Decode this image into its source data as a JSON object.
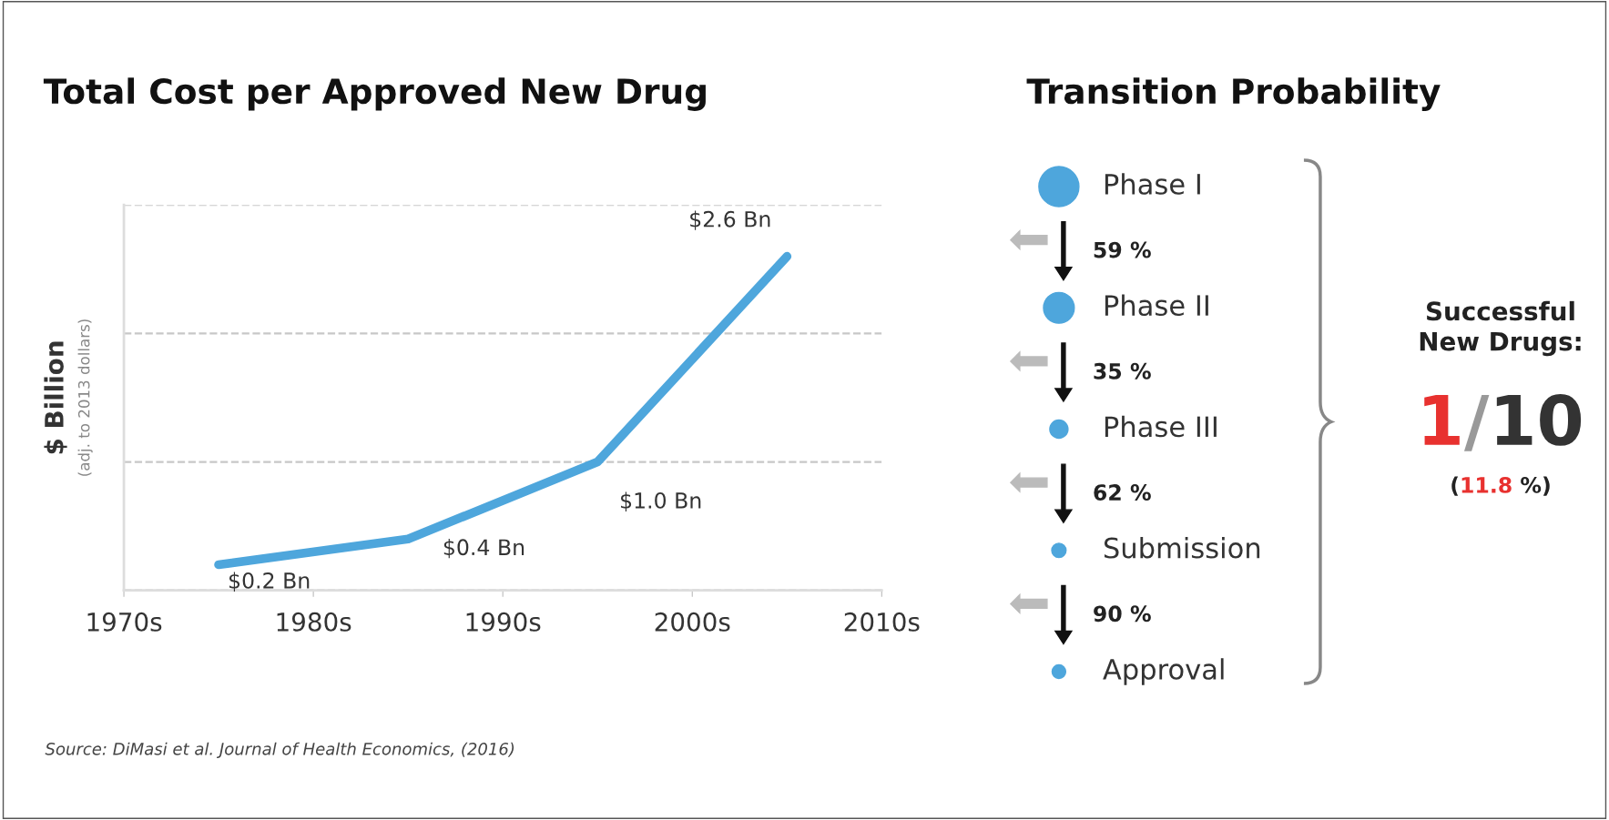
{
  "chart_data": [
    {
      "type": "line",
      "title": "Total Cost per Approved New Drug",
      "ylabel": "$ Billion",
      "x": [
        1975,
        1985,
        1995,
        2005
      ],
      "series": [
        {
          "color": "#4ea6dc",
          "values": [
            0.2,
            0.4,
            1.0,
            2.6
          ],
          "value_labels": [
            "$0.2 Bn",
            "$0.4 Bn",
            "$1.0 Bn",
            "$2.6 Bn"
          ]
        }
      ],
      "xlim": [
        1970,
        2010
      ],
      "xticks": [
        {
          "value": 1970,
          "label": "1970s"
        },
        {
          "value": 1980,
          "label": "1980s"
        },
        {
          "value": 1990,
          "label": "1990s"
        },
        {
          "value": 2000,
          "label": "2000s"
        },
        {
          "value": 2010,
          "label": "2010s"
        }
      ],
      "ylim": [
        0,
        3
      ],
      "yticks": [
        {
          "value": 0,
          "label": null
        },
        {
          "value": 1,
          "label": null
        },
        {
          "value": 2,
          "label": null
        },
        {
          "value": 3,
          "label": null
        }
      ],
      "grid": "y",
      "tick_labels": "x",
      "marker": "none",
      "line_style": "solid",
      "annotations": [
        "(adj. to 2013 dollars)",
        "Source: DiMasi et al. Journal of Health Economics, (2016)"
      ]
    },
    {
      "type": "other",
      "title": "Transition Probability",
      "categories": [
        "Phase I",
        "Phase II",
        "Phase III",
        "Submission",
        "Approval"
      ],
      "values": [
        null,
        59,
        35,
        62,
        90
      ],
      "value_labels": [
        null,
        "59 %",
        "35 %",
        "62 %",
        "90 %"
      ],
      "color": "#4ea6dc",
      "annotations": [
        "Successful\nNew Drugs:",
        "1/10",
        "(11.8 %)"
      ]
    }
  ]
}
